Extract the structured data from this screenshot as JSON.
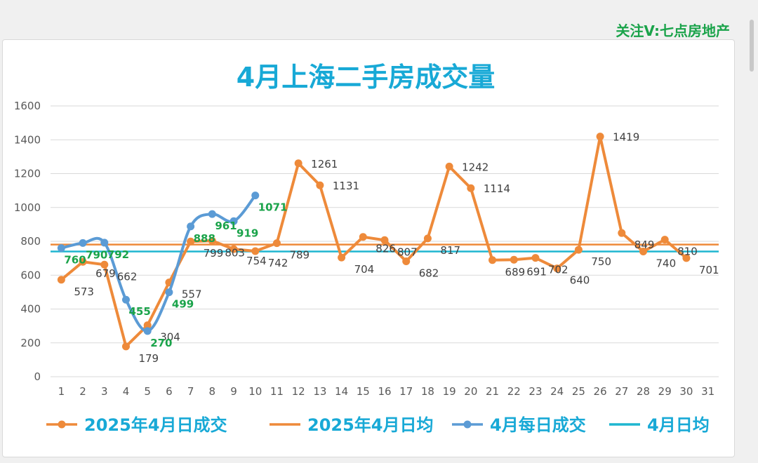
{
  "watermark": "关注V:七点房地产",
  "colors": {
    "orange": "#ee8a3a",
    "blue": "#5b9bd5",
    "teal": "#1fb6d0",
    "green": "#1aa34a"
  },
  "chart_data": {
    "type": "line",
    "title": "4月上海二手房成交量",
    "xlabel": "",
    "ylabel": "",
    "x": [
      1,
      2,
      3,
      4,
      5,
      6,
      7,
      8,
      9,
      10,
      11,
      12,
      13,
      14,
      15,
      16,
      17,
      18,
      19,
      20,
      21,
      22,
      23,
      24,
      25,
      26,
      27,
      28,
      29,
      30,
      31
    ],
    "ylim": [
      0,
      1600
    ],
    "yticks": [
      0,
      200,
      400,
      600,
      800,
      1000,
      1200,
      1400,
      1600
    ],
    "grid": true,
    "legend_position": "bottom",
    "series": [
      {
        "name": "2025年4月日成交",
        "kind": "line-marker",
        "color": "#ee8a3a",
        "x": [
          1,
          2,
          3,
          4,
          5,
          6,
          7,
          8,
          9,
          10,
          11,
          12,
          13,
          14,
          15,
          16,
          17,
          18,
          19,
          20,
          21,
          22,
          23,
          24,
          25,
          26,
          27,
          28,
          29,
          30
        ],
        "values": [
          573,
          679,
          662,
          179,
          304,
          557,
          799,
          803,
          754,
          742,
          789,
          1261,
          1131,
          704,
          826,
          807,
          682,
          817,
          1242,
          1114,
          689,
          691,
          702,
          640,
          750,
          1419,
          849,
          740,
          810,
          701
        ],
        "labels": [
          "573",
          "679",
          "662",
          "179",
          "304",
          "557",
          "799",
          "803",
          "754",
          "742",
          "789",
          "1261",
          "1131",
          "704",
          "826",
          "807",
          "682",
          "817",
          "1242",
          "1114",
          "689",
          "691",
          "702",
          "640",
          "750",
          "1419",
          "849",
          "740",
          "810",
          "701"
        ]
      },
      {
        "name": "2025年4月日均",
        "kind": "constant",
        "color": "#ee8a3a",
        "value": 781
      },
      {
        "name": "4月每日成交",
        "kind": "smooth-marker",
        "color": "#5b9bd5",
        "x": [
          1,
          2,
          3,
          4,
          5,
          6,
          7,
          8,
          9,
          10
        ],
        "values": [
          760,
          790,
          792,
          455,
          270,
          499,
          888,
          961,
          919,
          1071
        ],
        "labels": [
          "760",
          "790",
          "792",
          "455",
          "270",
          "499",
          "888",
          "961",
          "919",
          "1071"
        ]
      },
      {
        "name": "4月日均",
        "kind": "constant",
        "color": "#1fb6d0",
        "value": 740
      }
    ]
  }
}
